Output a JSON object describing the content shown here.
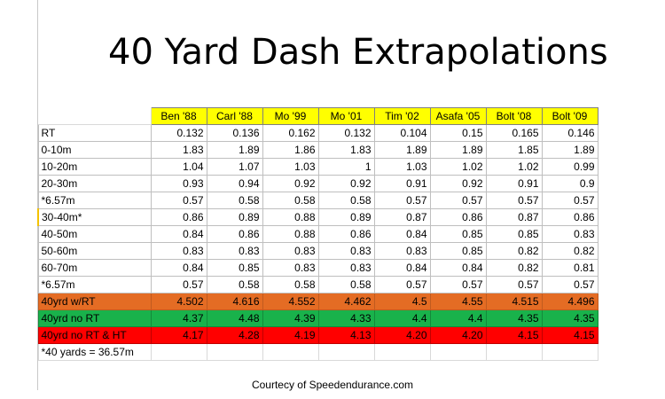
{
  "title": "40 Yard Dash Extrapolations",
  "credit": "Courtecy of Speedendurance.com",
  "columns": [
    "Ben '88",
    "Carl '88",
    "Mo '99",
    "Mo '01",
    "Tim '02",
    "Asafa '05",
    "Bolt '08",
    "Bolt '09"
  ],
  "rows": [
    {
      "label": "RT",
      "values": [
        "0.132",
        "0.136",
        "0.162",
        "0.132",
        "0.104",
        "0.15",
        "0.165",
        "0.146"
      ]
    },
    {
      "label": "0-10m",
      "values": [
        "1.83",
        "1.89",
        "1.86",
        "1.83",
        "1.89",
        "1.89",
        "1.85",
        "1.89"
      ]
    },
    {
      "label": "10-20m",
      "values": [
        "1.04",
        "1.07",
        "1.03",
        "1",
        "1.03",
        "1.02",
        "1.02",
        "0.99"
      ]
    },
    {
      "label": "20-30m",
      "values": [
        "0.93",
        "0.94",
        "0.92",
        "0.92",
        "0.91",
        "0.92",
        "0.91",
        "0.9"
      ]
    },
    {
      "label": "*6.57m",
      "values": [
        "0.57",
        "0.58",
        "0.58",
        "0.58",
        "0.57",
        "0.57",
        "0.57",
        "0.57"
      ]
    },
    {
      "label": "30-40m*",
      "values": [
        "0.86",
        "0.89",
        "0.88",
        "0.89",
        "0.87",
        "0.86",
        "0.87",
        "0.86"
      ]
    },
    {
      "label": "40-50m",
      "values": [
        "0.84",
        "0.86",
        "0.88",
        "0.86",
        "0.84",
        "0.85",
        "0.85",
        "0.83"
      ]
    },
    {
      "label": "50-60m",
      "values": [
        "0.83",
        "0.83",
        "0.83",
        "0.83",
        "0.83",
        "0.85",
        "0.82",
        "0.82"
      ]
    },
    {
      "label": "60-70m",
      "values": [
        "0.84",
        "0.85",
        "0.83",
        "0.83",
        "0.84",
        "0.84",
        "0.82",
        "0.81"
      ]
    },
    {
      "label": "*6.57m",
      "values": [
        "0.57",
        "0.58",
        "0.58",
        "0.58",
        "0.57",
        "0.57",
        "0.57",
        "0.57"
      ]
    }
  ],
  "summary_rows": [
    {
      "label": "40yrd w/RT",
      "color": "#e46c24",
      "values": [
        "4.502",
        "4.616",
        "4.552",
        "4.462",
        "4.5",
        "4.55",
        "4.515",
        "4.496"
      ]
    },
    {
      "label": "40yrd no RT",
      "color": "#19b24b",
      "values": [
        "4.37",
        "4.48",
        "4.39",
        "4.33",
        "4.4",
        "4.4",
        "4.35",
        "4.35"
      ]
    },
    {
      "label": "40yrd no RT & HT",
      "color": "#ff0000",
      "values": [
        "4.17",
        "4.28",
        "4.19",
        "4.13",
        "4.20",
        "4.20",
        "4.15",
        "4.15"
      ]
    }
  ],
  "note": "*40 yards = 36.57m",
  "colors": {
    "header_fill": "#ffff00",
    "orange": "#e46c24",
    "green": "#19b24b",
    "red": "#ff0000"
  }
}
